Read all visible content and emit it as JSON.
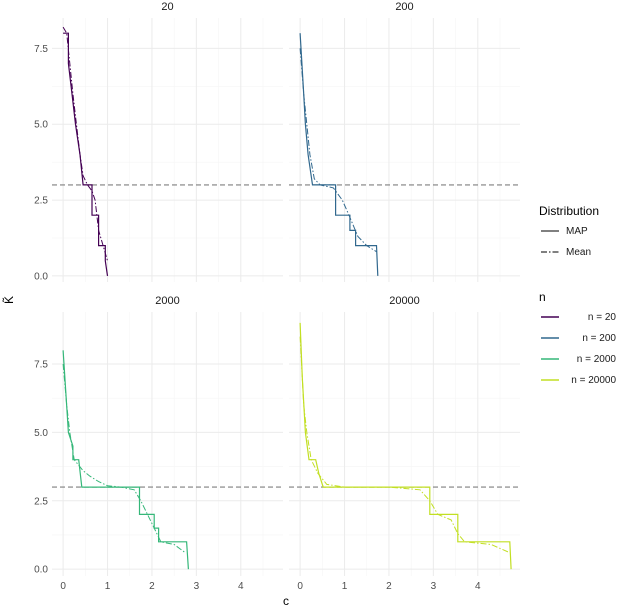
{
  "chart_data": {
    "type": "line",
    "facet_variable": "n",
    "xlabel": "c",
    "ylabel": "K̃",
    "xlim": [
      -0.25,
      4.95
    ],
    "x_ticks": [
      "0",
      "1",
      "2",
      "3",
      "4"
    ],
    "ylims": {
      "top": [
        -0.2,
        8.5
      ],
      "bottom": [
        -0.25,
        9.4
      ]
    },
    "y_ticks": [
      "0.0",
      "2.5",
      "5.0",
      "7.5"
    ],
    "reference_line": {
      "y": 3,
      "style": "dashed",
      "color": "#7f7f7f"
    },
    "legend_placement": "right",
    "linetype_legend": {
      "title": "Distribution",
      "entries": [
        {
          "label": "MAP",
          "dash": "solid"
        },
        {
          "label": "Mean",
          "dash": "dotdash"
        }
      ]
    },
    "color_legend": {
      "title": "n",
      "entries": [
        {
          "label": "n =  20",
          "color": "#440154"
        },
        {
          "label": "n = 200",
          "color": "#31688e"
        },
        {
          "label": "n = 2000",
          "color": "#35b779"
        },
        {
          "label": "n = 20000",
          "color": "#c2df23"
        }
      ]
    },
    "panels": [
      {
        "label": "20",
        "row": "top",
        "color": "#440154",
        "map": [
          [
            0,
            8
          ],
          [
            0.12,
            8
          ],
          [
            0.12,
            7
          ],
          [
            0.2,
            6
          ],
          [
            0.28,
            5
          ],
          [
            0.38,
            4
          ],
          [
            0.45,
            3
          ],
          [
            0.65,
            3
          ],
          [
            0.65,
            2
          ],
          [
            0.8,
            2
          ],
          [
            0.8,
            1
          ],
          [
            0.95,
            1
          ],
          [
            0.95,
            0.5
          ],
          [
            1.0,
            0
          ]
        ],
        "mean": [
          [
            0,
            8.2
          ],
          [
            0.08,
            8
          ],
          [
            0.15,
            7
          ],
          [
            0.22,
            6
          ],
          [
            0.3,
            5
          ],
          [
            0.38,
            4
          ],
          [
            0.45,
            3.3
          ],
          [
            0.55,
            3
          ],
          [
            0.65,
            2.8
          ],
          [
            0.72,
            2.5
          ],
          [
            0.8,
            1.5
          ],
          [
            0.9,
            1
          ],
          [
            1.0,
            0.5
          ]
        ]
      },
      {
        "label": "200",
        "row": "top",
        "color": "#31688e",
        "map": [
          [
            0,
            8
          ],
          [
            0.08,
            6
          ],
          [
            0.12,
            5
          ],
          [
            0.18,
            4
          ],
          [
            0.28,
            3
          ],
          [
            0.8,
            3
          ],
          [
            0.8,
            2
          ],
          [
            1.12,
            2
          ],
          [
            1.12,
            1.5
          ],
          [
            1.25,
            1.5
          ],
          [
            1.25,
            1
          ],
          [
            1.72,
            1
          ],
          [
            1.75,
            0
          ]
        ],
        "mean": [
          [
            0,
            7.5
          ],
          [
            0.08,
            6
          ],
          [
            0.15,
            5
          ],
          [
            0.22,
            4
          ],
          [
            0.32,
            3.2
          ],
          [
            0.45,
            3
          ],
          [
            0.75,
            2.9
          ],
          [
            0.95,
            2.5
          ],
          [
            1.1,
            2
          ],
          [
            1.3,
            1.3
          ],
          [
            1.5,
            1
          ],
          [
            1.72,
            0.8
          ]
        ]
      },
      {
        "label": "2000",
        "row": "bottom",
        "color": "#35b779",
        "map": [
          [
            0,
            8
          ],
          [
            0.12,
            5
          ],
          [
            0.22,
            4.5
          ],
          [
            0.22,
            4
          ],
          [
            0.35,
            4
          ],
          [
            0.42,
            3
          ],
          [
            1.72,
            3
          ],
          [
            1.72,
            2
          ],
          [
            2.05,
            2
          ],
          [
            2.05,
            1.5
          ],
          [
            2.15,
            1.5
          ],
          [
            2.15,
            1
          ],
          [
            2.78,
            1
          ],
          [
            2.82,
            0
          ]
        ],
        "mean": [
          [
            0,
            7.5
          ],
          [
            0.08,
            6
          ],
          [
            0.15,
            5
          ],
          [
            0.25,
            4
          ],
          [
            0.45,
            3.6
          ],
          [
            0.6,
            3.4
          ],
          [
            0.8,
            3.2
          ],
          [
            1.0,
            3.05
          ],
          [
            1.3,
            3
          ],
          [
            1.6,
            2.9
          ],
          [
            1.75,
            2.5
          ],
          [
            1.9,
            2
          ],
          [
            2.05,
            1.5
          ],
          [
            2.2,
            1
          ],
          [
            2.5,
            0.9
          ],
          [
            2.75,
            0.6
          ]
        ]
      },
      {
        "label": "20000",
        "row": "bottom",
        "color": "#c2df23",
        "map": [
          [
            0,
            9
          ],
          [
            0.05,
            7
          ],
          [
            0.12,
            5
          ],
          [
            0.2,
            4
          ],
          [
            0.35,
            4
          ],
          [
            0.42,
            3.5
          ],
          [
            0.52,
            3
          ],
          [
            2.92,
            3
          ],
          [
            2.92,
            2
          ],
          [
            3.55,
            2
          ],
          [
            3.55,
            1
          ],
          [
            4.72,
            1
          ],
          [
            4.75,
            0
          ]
        ],
        "mean": [
          [
            0,
            8.5
          ],
          [
            0.08,
            6
          ],
          [
            0.15,
            5
          ],
          [
            0.25,
            4
          ],
          [
            0.4,
            3.5
          ],
          [
            0.6,
            3.1
          ],
          [
            1.0,
            3
          ],
          [
            2.0,
            3
          ],
          [
            2.7,
            2.9
          ],
          [
            2.92,
            2.5
          ],
          [
            3.1,
            2
          ],
          [
            3.4,
            1.8
          ],
          [
            3.55,
            1.3
          ],
          [
            3.7,
            1
          ],
          [
            4.3,
            0.9
          ],
          [
            4.72,
            0.6
          ]
        ]
      }
    ]
  }
}
